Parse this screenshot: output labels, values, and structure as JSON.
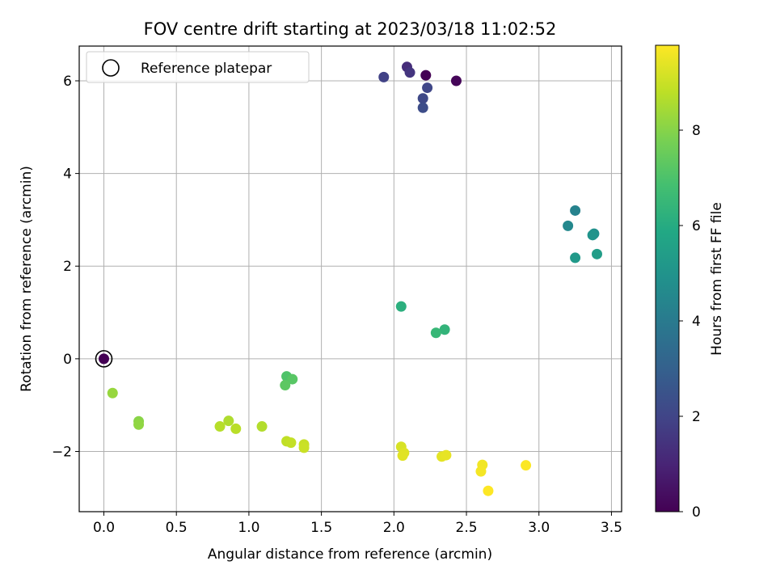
{
  "chart_data": {
    "type": "scatter",
    "title": "FOV centre drift starting at 2023/03/18 11:02:52",
    "xlabel": "Angular distance from reference (arcmin)",
    "ylabel": "Rotation from reference (arcmin)",
    "xlim": [
      -0.17,
      3.57
    ],
    "ylim": [
      -3.3,
      6.75
    ],
    "xticks": [
      0.0,
      0.5,
      1.0,
      1.5,
      2.0,
      2.5,
      3.0,
      3.5
    ],
    "xtick_labels": [
      "0.0",
      "0.5",
      "1.0",
      "1.5",
      "2.0",
      "2.5",
      "3.0",
      "3.5"
    ],
    "yticks": [
      -2,
      0,
      2,
      4,
      6
    ],
    "ytick_labels": [
      "−2",
      "0",
      "2",
      "4",
      "6"
    ],
    "grid": true,
    "legend": {
      "position": "top-left",
      "entries": [
        "Reference platepar"
      ]
    },
    "colorbar": {
      "label": "Hours from first FF file",
      "range": [
        0,
        9.78
      ],
      "ticks": [
        0,
        2,
        4,
        6,
        8
      ],
      "tick_labels": [
        "0",
        "2",
        "4",
        "6",
        "8"
      ],
      "colormap": "viridis"
    },
    "reference_point": {
      "x": 0.0,
      "y": 0.0,
      "c": 0.0
    },
    "points": [
      {
        "x": 0.0,
        "y": 0.0,
        "c": 0.0
      },
      {
        "x": 2.22,
        "y": 6.12,
        "c": 0.0
      },
      {
        "x": 2.43,
        "y": 6.0,
        "c": 0.15
      },
      {
        "x": 2.09,
        "y": 6.3,
        "c": 1.25
      },
      {
        "x": 2.11,
        "y": 6.18,
        "c": 1.5
      },
      {
        "x": 1.93,
        "y": 6.08,
        "c": 1.9
      },
      {
        "x": 2.23,
        "y": 5.85,
        "c": 2.05
      },
      {
        "x": 2.2,
        "y": 5.62,
        "c": 2.15
      },
      {
        "x": 2.2,
        "y": 5.42,
        "c": 2.3
      },
      {
        "x": 3.25,
        "y": 3.2,
        "c": 4.3
      },
      {
        "x": 3.2,
        "y": 2.87,
        "c": 4.55
      },
      {
        "x": 3.38,
        "y": 2.7,
        "c": 4.85
      },
      {
        "x": 3.37,
        "y": 2.67,
        "c": 5.0
      },
      {
        "x": 3.25,
        "y": 2.18,
        "c": 5.25
      },
      {
        "x": 3.4,
        "y": 2.26,
        "c": 5.4
      },
      {
        "x": 2.05,
        "y": 1.13,
        "c": 6.15
      },
      {
        "x": 2.35,
        "y": 0.63,
        "c": 6.35
      },
      {
        "x": 2.29,
        "y": 0.56,
        "c": 6.5
      },
      {
        "x": 1.26,
        "y": -0.38,
        "c": 7.05
      },
      {
        "x": 1.3,
        "y": -0.44,
        "c": 7.2
      },
      {
        "x": 1.25,
        "y": -0.57,
        "c": 7.3
      },
      {
        "x": 0.06,
        "y": -0.74,
        "c": 8.25
      },
      {
        "x": 0.24,
        "y": -1.35,
        "c": 8.05
      },
      {
        "x": 0.24,
        "y": -1.42,
        "c": 8.15
      },
      {
        "x": 0.86,
        "y": -1.34,
        "c": 8.6
      },
      {
        "x": 0.8,
        "y": -1.46,
        "c": 8.7
      },
      {
        "x": 0.91,
        "y": -1.51,
        "c": 8.75
      },
      {
        "x": 1.09,
        "y": -1.46,
        "c": 8.65
      },
      {
        "x": 1.26,
        "y": -1.78,
        "c": 8.85
      },
      {
        "x": 1.29,
        "y": -1.81,
        "c": 8.9
      },
      {
        "x": 1.38,
        "y": -1.85,
        "c": 8.95
      },
      {
        "x": 1.38,
        "y": -1.92,
        "c": 9.0
      },
      {
        "x": 2.05,
        "y": -1.9,
        "c": 9.2
      },
      {
        "x": 2.07,
        "y": -2.03,
        "c": 9.3
      },
      {
        "x": 2.06,
        "y": -2.09,
        "c": 9.35
      },
      {
        "x": 2.33,
        "y": -2.11,
        "c": 9.4
      },
      {
        "x": 2.36,
        "y": -2.08,
        "c": 9.45
      },
      {
        "x": 2.61,
        "y": -2.29,
        "c": 9.6
      },
      {
        "x": 2.6,
        "y": -2.43,
        "c": 9.65
      },
      {
        "x": 2.91,
        "y": -2.3,
        "c": 9.75
      },
      {
        "x": 2.65,
        "y": -2.85,
        "c": 9.78
      }
    ]
  }
}
